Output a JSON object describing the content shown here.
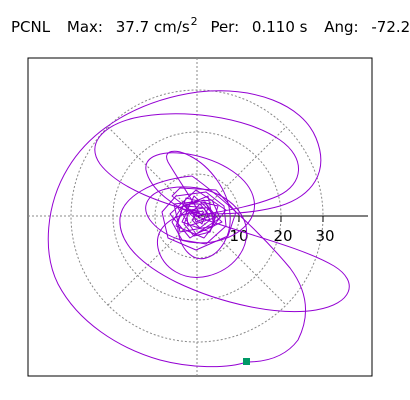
{
  "header": {
    "station": "PCNL",
    "max_label": "Max:",
    "max_value": "37.7 cm/s",
    "max_exp": "2",
    "per_label": "Per:",
    "per_value": "0.110 s",
    "ang_label": "Ang:",
    "ang_value": "-72.2"
  },
  "plot": {
    "radial_ticks": [
      "10",
      "20",
      "30"
    ],
    "trace_color": "#9400d3",
    "grid_color": "#888888",
    "end_marker_color": "#009966"
  },
  "chart_data": {
    "type": "scatter",
    "title": "",
    "units": "cm/s^2",
    "max": 37.7,
    "period_s": 0.11,
    "angle_deg": -72.2,
    "radial_ticks": [
      10,
      20,
      30
    ],
    "grid": true
  }
}
